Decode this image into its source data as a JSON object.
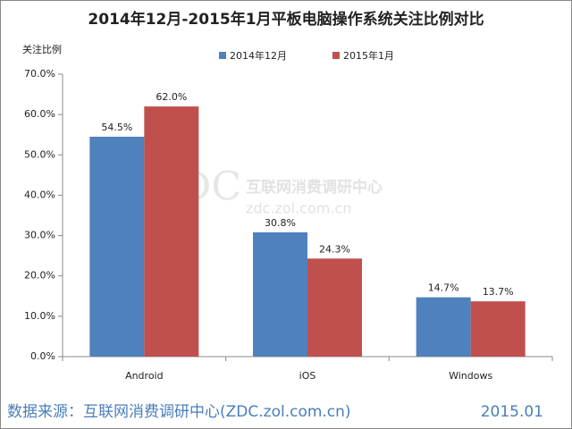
{
  "chart_data": {
    "type": "bar",
    "title": "2014年12月-2015年1月平板电脑操作系统关注比例对比",
    "y_label": "关注比例",
    "categories": [
      "Android",
      "iOS",
      "Windows"
    ],
    "series": [
      {
        "name": "2014年12月",
        "color": "#4f81bd",
        "values": [
          54.5,
          30.8,
          14.7
        ],
        "value_labels": [
          "54.5%",
          "30.8%",
          "14.7%"
        ]
      },
      {
        "name": "2015年1月",
        "color": "#c0504d",
        "values": [
          62.0,
          24.3,
          13.7
        ],
        "value_labels": [
          "62.0%",
          "24.3%",
          "13.7%"
        ]
      }
    ],
    "ylim": [
      0,
      70
    ],
    "yticks": [
      {
        "value": 0,
        "label": "0.0%"
      },
      {
        "value": 10,
        "label": "10.0%"
      },
      {
        "value": 20,
        "label": "20.0%"
      },
      {
        "value": 30,
        "label": "30.0%"
      },
      {
        "value": 40,
        "label": "40.0%"
      },
      {
        "value": 50,
        "label": "50.0%"
      },
      {
        "value": 60,
        "label": "60.0%"
      },
      {
        "value": 70,
        "label": "70.0%"
      }
    ],
    "grid": false,
    "legend": "top",
    "watermark": [
      "ZDC",
      "互联网消费调研中心",
      "zdc.zol.com.cn"
    ],
    "source": "数据来源：互联网消费调研中心(ZDC.zol.com.cn)",
    "date": "2015.01"
  }
}
